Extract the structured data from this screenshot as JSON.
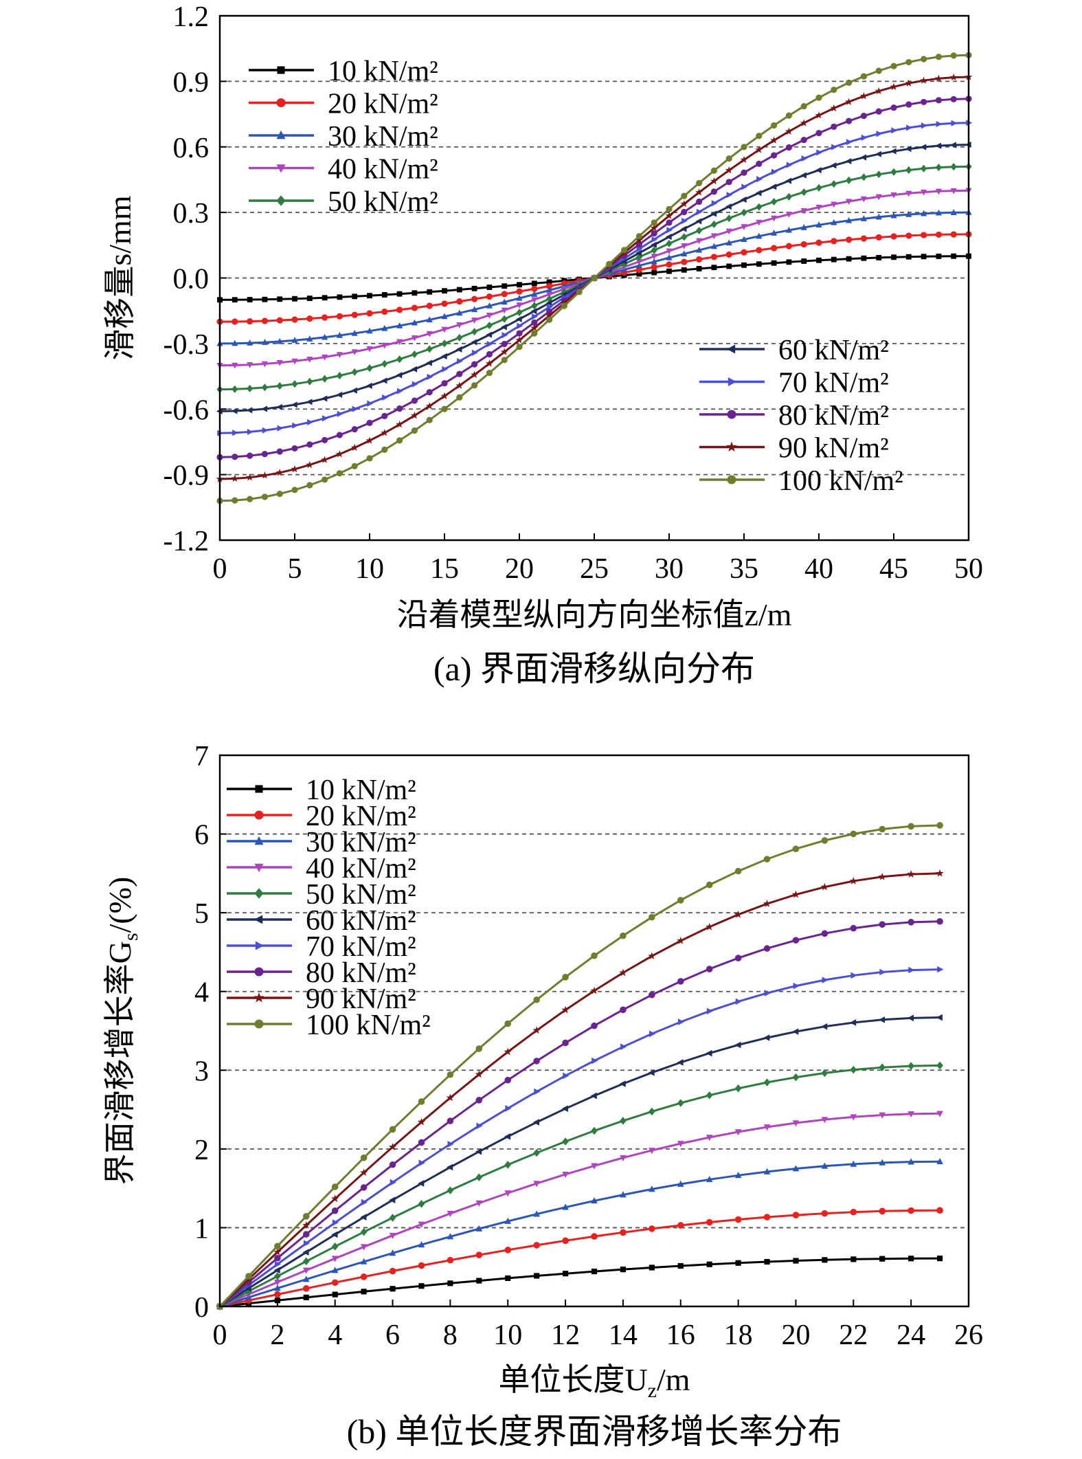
{
  "chart_data": [
    {
      "type": "line",
      "caption": "(a) 界面滑移纵向分布",
      "xlabel": "沿着模型纵向方向坐标值z/m",
      "ylabel": "滑移量s/mm",
      "xlim": [
        0,
        50
      ],
      "ylim": [
        -1.2,
        1.2
      ],
      "xticks": [
        "0",
        "5",
        "10",
        "15",
        "20",
        "25",
        "30",
        "35",
        "40",
        "45",
        "50"
      ],
      "yticks": [
        "1.2",
        "0.9",
        "0.6",
        "0.3",
        "0.0",
        "-0.3",
        "-0.6",
        "-0.9",
        "-1.2"
      ],
      "ytick_values": [
        1.2,
        0.9,
        0.6,
        0.3,
        0.0,
        -0.3,
        -0.6,
        -0.9,
        -1.2
      ],
      "grid": "horizontal dashed",
      "legend": [
        "top-left (10–50)",
        "bottom-right (60–100)"
      ],
      "curve": "s(z) = -A·cos(π·z/50)",
      "x": [
        0,
        1,
        2,
        3,
        4,
        5,
        6,
        7,
        8,
        9,
        10,
        11,
        12,
        13,
        14,
        15,
        16,
        17,
        18,
        19,
        20,
        21,
        22,
        23,
        24,
        25,
        26,
        27,
        28,
        29,
        30,
        31,
        32,
        33,
        34,
        35,
        36,
        37,
        38,
        39,
        40,
        41,
        42,
        43,
        44,
        45,
        46,
        47,
        48,
        49,
        50
      ],
      "series": [
        {
          "name": "10 kN/m²",
          "amplitude": 0.1,
          "color": "#000000",
          "marker": "square"
        },
        {
          "name": "20 kN/m²",
          "amplitude": 0.2,
          "color": "#e8201e",
          "marker": "circle"
        },
        {
          "name": "30 kN/m²",
          "amplitude": 0.3,
          "color": "#2a56b8",
          "marker": "triangle-up"
        },
        {
          "name": "40 kN/m²",
          "amplitude": 0.4,
          "color": "#b043bf",
          "marker": "triangle-down"
        },
        {
          "name": "50 kN/m²",
          "amplitude": 0.51,
          "color": "#2c7d3e",
          "marker": "diamond"
        },
        {
          "name": "60 kN/m²",
          "amplitude": 0.61,
          "color": "#1f2d5a",
          "marker": "triangle-left"
        },
        {
          "name": "70 kN/m²",
          "amplitude": 0.71,
          "color": "#4b4fd6",
          "marker": "triangle-right"
        },
        {
          "name": "80 kN/m²",
          "amplitude": 0.82,
          "color": "#6a2391",
          "marker": "circle"
        },
        {
          "name": "90 kN/m²",
          "amplitude": 0.92,
          "color": "#7a1414",
          "marker": "star"
        },
        {
          "name": "100 kN/m²",
          "amplitude": 1.02,
          "color": "#6f7d2c",
          "marker": "circle"
        }
      ]
    },
    {
      "type": "line",
      "caption": "(b) 单位长度界面滑移增长率分布",
      "xlabel": "单位长度U",
      "xlabel_sub": "z",
      "xlabel_tail": "/m",
      "ylabel": "界面滑移增长率G",
      "ylabel_sub": "s",
      "ylabel_tail": "/(%)",
      "xlim": [
        0,
        26
      ],
      "ylim": [
        0,
        7
      ],
      "xticks": [
        "0",
        "2",
        "4",
        "6",
        "8",
        "10",
        "12",
        "14",
        "16",
        "18",
        "20",
        "22",
        "24",
        "26"
      ],
      "yticks": [
        "0",
        "1",
        "2",
        "3",
        "4",
        "5",
        "6",
        "7"
      ],
      "grid": "horizontal dashed",
      "legend": "top-left",
      "curve": "G(x) = G_max·sin(π·x/50)",
      "x": [
        0,
        1,
        2,
        3,
        4,
        5,
        6,
        7,
        8,
        9,
        10,
        11,
        12,
        13,
        14,
        15,
        16,
        17,
        18,
        19,
        20,
        21,
        22,
        23,
        24,
        25
      ],
      "series": [
        {
          "name": "10 kN/m²",
          "max": 0.61,
          "color": "#000000",
          "marker": "square"
        },
        {
          "name": "20 kN/m²",
          "max": 1.22,
          "color": "#e8201e",
          "marker": "circle"
        },
        {
          "name": "30 kN/m²",
          "max": 1.84,
          "color": "#2a56b8",
          "marker": "triangle-up"
        },
        {
          "name": "40 kN/m²",
          "max": 2.45,
          "color": "#b043bf",
          "marker": "triangle-down"
        },
        {
          "name": "50 kN/m²",
          "max": 3.06,
          "color": "#2c7d3e",
          "marker": "diamond"
        },
        {
          "name": "60 kN/m²",
          "max": 3.67,
          "color": "#1f2d5a",
          "marker": "triangle-left"
        },
        {
          "name": "70 kN/m²",
          "max": 4.28,
          "color": "#4b4fd6",
          "marker": "triangle-right"
        },
        {
          "name": "80 kN/m²",
          "max": 4.89,
          "color": "#6a2391",
          "marker": "circle"
        },
        {
          "name": "90 kN/m²",
          "max": 5.5,
          "color": "#7a1414",
          "marker": "star"
        },
        {
          "name": "100 kN/m²",
          "max": 6.11,
          "color": "#6f7d2c",
          "marker": "circle"
        }
      ]
    }
  ]
}
